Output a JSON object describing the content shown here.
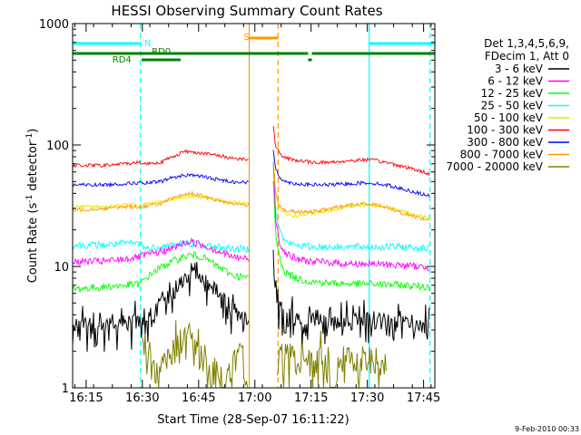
{
  "chart_data": {
    "type": "line",
    "title": "HESSI Observing Summary Count Rates",
    "xlabel": "Start Time (28-Sep-07 16:11:22)",
    "ylabel_main": "Count Rate (s",
    "ylabel_sup1": "-1",
    "ylabel_mid": " detector",
    "ylabel_sup2": "-1",
    "ylabel_end": ")",
    "yscale": "log",
    "ylim": [
      1,
      1000
    ],
    "xlim_min": [
      971.4,
      1068
    ],
    "x_ticks": [
      {
        "min": 975,
        "label": "16:15"
      },
      {
        "min": 990,
        "label": "16:30"
      },
      {
        "min": 1005,
        "label": "16:45"
      },
      {
        "min": 1020,
        "label": "17:00"
      },
      {
        "min": 1035,
        "label": "17:15"
      },
      {
        "min": 1050,
        "label": "17:30"
      },
      {
        "min": 1065,
        "label": "17:45"
      }
    ],
    "y_ticks": [
      {
        "value": 1,
        "label": "1"
      },
      {
        "value": 10,
        "label": "10"
      },
      {
        "value": 100,
        "label": "100"
      },
      {
        "value": 1000,
        "label": "1000"
      }
    ],
    "legend": {
      "header1": "Det 1,3,4,5,6,9,",
      "header2": "FDecim 1, Att 0",
      "placement": "right"
    },
    "series": [
      {
        "name": "3 - 6 keV",
        "color": "#000000",
        "segments": [
          {
            "x": [
              971.4,
              979,
              985,
              989.5,
              991,
              994,
              998,
              1001,
              1003,
              1006,
              1010,
              1012,
              1014,
              1016,
              1018.3
            ],
            "y": [
              3.3,
              3.3,
              3.5,
              3.5,
              3.8,
              4.5,
              6,
              8,
              8.5,
              8,
              6.5,
              5.5,
              4.5,
              3.8,
              3.5
            ]
          },
          {
            "x": [
              1024.9,
              1025.5,
              1026.5,
              1028,
              1031,
              1035,
              1040,
              1045,
              1050,
              1053,
              1056,
              1059,
              1062,
              1066.5
            ],
            "y": [
              10,
              6,
              4.5,
              4,
              3.8,
              3.6,
              3.5,
              3.5,
              3.6,
              3.6,
              3.5,
              3.4,
              3.3,
              3.2
            ]
          }
        ]
      },
      {
        "name": "6 - 12 keV",
        "color": "#ff00ff",
        "segments": [
          {
            "x": [
              971.4,
              980,
              985,
              989.5,
              991,
              994,
              998,
              1001,
              1003,
              1006,
              1010,
              1014,
              1018.3
            ],
            "y": [
              11,
              11,
              11.5,
              12,
              12.5,
              13,
              14,
              15.5,
              16,
              15,
              13.5,
              12,
              11.5
            ]
          },
          {
            "x": [
              1024.9,
              1025.5,
              1026.5,
              1028,
              1031,
              1035,
              1040,
              1045,
              1050,
              1055,
              1060,
              1066.5
            ],
            "y": [
              70,
              25,
              16,
              13,
              11.5,
              11,
              10.8,
              10.5,
              10.5,
              10.4,
              10.2,
              9.8
            ]
          }
        ]
      },
      {
        "name": "12 - 25 keV",
        "color": "#00ff00",
        "segments": [
          {
            "x": [
              971.4,
              980,
              985,
              989.5,
              991,
              994,
              998,
              1001,
              1003,
              1006,
              1010,
              1014,
              1018.3
            ],
            "y": [
              6.5,
              6.8,
              7,
              7.2,
              8,
              9.5,
              11,
              12,
              12.5,
              12,
              10,
              8.5,
              8
            ]
          },
          {
            "x": [
              1024.9,
              1025.5,
              1026.5,
              1028,
              1031,
              1035,
              1040,
              1045,
              1050,
              1055,
              1060,
              1066.5
            ],
            "y": [
              50,
              18,
              12,
              9,
              8,
              7.5,
              7.3,
              7.2,
              7.2,
              7.1,
              7,
              6.8
            ]
          }
        ]
      },
      {
        "name": "25 - 50 keV",
        "color": "#00ffff",
        "segments": [
          {
            "x": [
              971.4,
              980,
              985,
              989.5,
              991,
              994,
              998,
              1001,
              1003,
              1006,
              1010,
              1014,
              1018.3
            ],
            "y": [
              15,
              15,
              15.5,
              15.5,
              14,
              14.5,
              15,
              15.5,
              15.5,
              15,
              14.5,
              14,
              14
            ]
          },
          {
            "x": [
              1024.9,
              1025.5,
              1026.5,
              1028,
              1031,
              1035,
              1040,
              1045,
              1050,
              1055,
              1060,
              1066.5
            ],
            "y": [
              70,
              30,
              20,
              16,
              15,
              14.5,
              14.5,
              14.5,
              14.5,
              14.5,
              14.5,
              14
            ]
          }
        ]
      },
      {
        "name": "50 - 100 keV",
        "color": "#e8e800",
        "segments": [
          {
            "x": [
              971.4,
              980,
              985,
              989.5,
              991,
              994,
              998,
              1001,
              1003,
              1006,
              1010,
              1014,
              1018.3
            ],
            "y": [
              31,
              31,
              32,
              32,
              33,
              34,
              36,
              37,
              38,
              37,
              35,
              34,
              33
            ]
          },
          {
            "x": [
              1024.9,
              1025.5,
              1026.5,
              1028,
              1031,
              1035,
              1040,
              1045,
              1050,
              1055,
              1060,
              1066.5
            ],
            "y": [
              80,
              40,
              30,
              27,
              26,
              27,
              29,
              31,
              32,
              31,
              28,
              25
            ]
          }
        ]
      },
      {
        "name": "100 - 300 keV",
        "color": "#ff0000",
        "segments": [
          {
            "x": [
              971.4,
              980,
              985,
              989.5,
              990,
              995,
              998,
              1001,
              1003,
              1006,
              1010,
              1014,
              1018.3
            ],
            "y": [
              68,
              68,
              70,
              72,
              70,
              72,
              80,
              88,
              88,
              86,
              82,
              78,
              76
            ]
          },
          {
            "x": [
              1024.9,
              1025.5,
              1026.5,
              1028,
              1031,
              1035,
              1040,
              1045,
              1050,
              1055,
              1060,
              1066.5
            ],
            "y": [
              140,
              100,
              85,
              78,
              75,
              72,
              72,
              74,
              76,
              72,
              66,
              58
            ]
          }
        ]
      },
      {
        "name": "300 - 800 keV",
        "color": "#0000ff",
        "segments": [
          {
            "x": [
              971.4,
              980,
              985,
              989.5,
              990,
              995,
              998,
              1001,
              1003,
              1006,
              1010,
              1014,
              1018.3
            ],
            "y": [
              47,
              47,
              48,
              49,
              48,
              50,
              54,
              56,
              57,
              55,
              52,
              50,
              49
            ]
          },
          {
            "x": [
              1024.9,
              1025.5,
              1026.5,
              1028,
              1031,
              1035,
              1040,
              1045,
              1050,
              1055,
              1060,
              1066.5
            ],
            "y": [
              90,
              65,
              55,
              50,
              48,
              47,
              47,
              48,
              49,
              47,
              43,
              38
            ]
          }
        ]
      },
      {
        "name": "800 - 7000 keV",
        "color": "#ff9900",
        "segments": [
          {
            "x": [
              971.4,
              980,
              985,
              989.5,
              990,
              995,
              998,
              1001,
              1003,
              1006,
              1010,
              1014,
              1018.3
            ],
            "y": [
              29,
              30,
              31,
              31,
              31,
              33,
              36,
              39,
              40,
              38,
              35,
              33,
              32
            ]
          },
          {
            "x": [
              1024.9,
              1025.5,
              1026.5,
              1028,
              1031,
              1035,
              1040,
              1045,
              1050,
              1055,
              1060,
              1066.5
            ],
            "y": [
              70,
              40,
              32,
              29,
              28,
              28,
              30,
              32,
              33,
              31,
              27,
              24
            ]
          }
        ]
      },
      {
        "name": "7000 - 20000 keV",
        "color": "#808000",
        "segments": [
          {
            "x": [
              990,
              992,
              994,
              996,
              998,
              1000,
              1002,
              1004,
              1005,
              1006,
              1008,
              1010,
              1012,
              1014,
              1016,
              1018
            ],
            "y": [
              1.9,
              1.6,
              1.3,
              1.8,
              2.1,
              2.6,
              2.9,
              2.3,
              1.9,
              1.4,
              1.3,
              1.6,
              1.1,
              1.6,
              1.9,
              1.3
            ]
          },
          {
            "x": [
              1026,
              1030,
              1035,
              1038,
              1041,
              1044,
              1047,
              1050,
              1053,
              1055
            ],
            "y": [
              1.7,
              1.9,
              1.4,
              1.9,
              1.2,
              1.8,
              1.5,
              1.9,
              1.3,
              1.9
            ]
          }
        ]
      }
    ],
    "annotations": {
      "flag_n": {
        "label": "N",
        "color": "#00ffff",
        "segments": [
          [
            971.4,
            989.5
          ],
          [
            1050.5,
            1068
          ]
        ]
      },
      "flag_s": {
        "label": "S",
        "color": "#ff9900",
        "segments": [
          [
            1018.5,
            1026.2
          ]
        ]
      },
      "flag_rd0": {
        "label": "RD0",
        "color": "#008000",
        "segments": [
          [
            971.4,
            1034.2
          ],
          [
            1035.2,
            1068
          ]
        ]
      },
      "flag_rd4": {
        "label": "RD4",
        "color": "#008000",
        "segments": [
          [
            989.8,
            1000.2
          ],
          [
            1034.2,
            1035.2
          ]
        ]
      },
      "vlines": [
        {
          "min": 989.5,
          "color": "#00ffff",
          "dash": true
        },
        {
          "min": 1018.5,
          "color": "#ff9900",
          "dash": false
        },
        {
          "min": 1026.2,
          "color": "#ff9900",
          "dash": true
        },
        {
          "min": 1050.5,
          "color": "#00ffff",
          "dash": false
        },
        {
          "min": 1066.7,
          "color": "#00ffff",
          "dash": true
        }
      ]
    },
    "grid": false
  },
  "timestamp": "9-Feb-2010 00:33"
}
